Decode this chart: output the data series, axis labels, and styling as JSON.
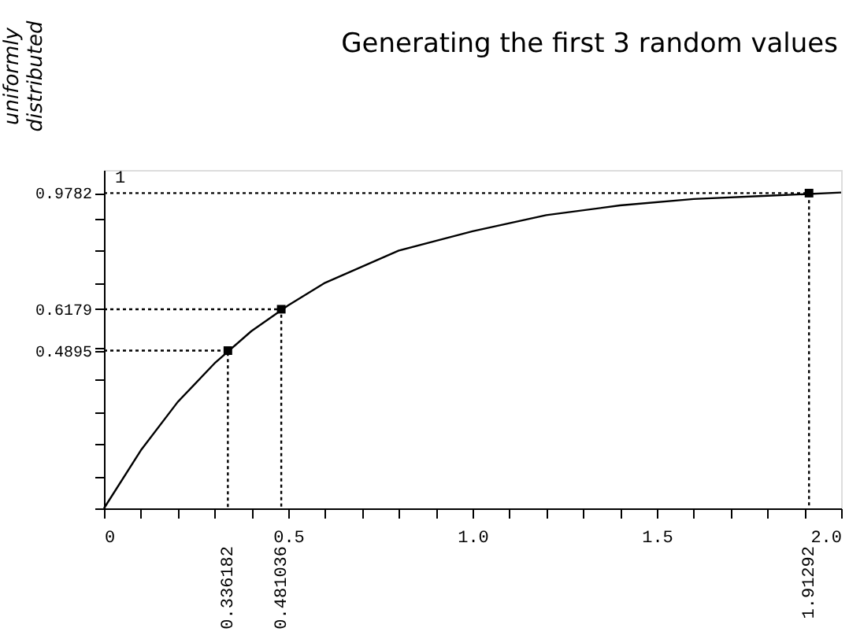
{
  "chart_data": {
    "type": "line",
    "title": "Generating the first 3 random values",
    "ylabel": "uniformly distributed",
    "xlim": [
      0,
      2.0
    ],
    "ylim": [
      0,
      1.05
    ],
    "xticks": [
      0,
      {
        "value": 0.1,
        "label": null
      },
      {
        "value": 0.2,
        "label": null
      },
      {
        "value": 0.3,
        "label": null
      },
      {
        "value": 0.4,
        "label": null
      },
      0.5,
      {
        "value": 0.6,
        "label": null
      },
      {
        "value": 0.7,
        "label": null
      },
      {
        "value": 0.8,
        "label": null
      },
      {
        "value": 0.9,
        "label": null
      },
      {
        "value": 1,
        "label": "1.0"
      },
      {
        "value": 1.1,
        "label": null
      },
      {
        "value": 1.2,
        "label": null
      },
      {
        "value": 1.3,
        "label": null
      },
      {
        "value": 1.4,
        "label": null
      },
      1.5,
      {
        "value": 1.6,
        "label": null
      },
      {
        "value": 1.7,
        "label": null
      },
      {
        "value": 1.8,
        "label": null
      },
      {
        "value": 1.9,
        "label": null
      },
      {
        "value": 2,
        "label": "2.0"
      }
    ],
    "yticks": [
      {
        "value": 0,
        "label": null
      },
      {
        "value": 0.1,
        "label": null
      },
      {
        "value": 0.2,
        "label": null
      },
      {
        "value": 0.3,
        "label": null
      },
      {
        "value": 0.4,
        "label": null
      },
      0.4895,
      {
        "value": 0.5,
        "label": null
      },
      0.6179,
      {
        "value": 0.7,
        "label": null
      },
      {
        "value": 0.8,
        "label": null
      },
      {
        "value": 0.9,
        "label": null
      },
      0.9782
    ],
    "grid": false,
    "series": [
      {
        "color": "#000000",
        "x": [
          0,
          0.1,
          0.2,
          0.3,
          0.4,
          0.5,
          0.6,
          0.7,
          0.8,
          0.9,
          1.0,
          1.2,
          1.4,
          1.6,
          1.8,
          2.0
        ],
        "values": [
          0,
          0.18,
          0.33,
          0.45,
          0.55,
          0.63,
          0.7,
          0.75,
          0.8,
          0.83,
          0.86,
          0.91,
          0.94,
          0.96,
          0.97,
          0.98
        ]
      },
      {
        "type": "line",
        "line_style": "dotted",
        "color": "#000000",
        "x": [
          0,
          0.336182,
          0.336182
        ],
        "values": [
          0.4895,
          0.4895,
          0
        ]
      },
      {
        "type": "line",
        "line_style": "dotted",
        "color": "#000000",
        "x": [
          0,
          0.481036,
          0.481036
        ],
        "values": [
          0.6179,
          0.6179,
          0
        ]
      },
      {
        "type": "line",
        "line_style": "dotted",
        "color": "#000000",
        "x": [
          0,
          1.91292,
          1.91292
        ],
        "values": [
          0.9782,
          0.9782,
          0
        ]
      },
      {
        "type": "scatter",
        "marker": "square",
        "color": "#000000",
        "x": [
          0.336182,
          0.481036,
          1.91292
        ],
        "values": [
          0.4895,
          0.6179,
          0.9782
        ]
      }
    ],
    "annotations": [
      {
        "text": "1",
        "x": 0.03,
        "y": 1.0
      },
      "0.336182",
      "0.481036",
      "1.91292"
    ]
  }
}
